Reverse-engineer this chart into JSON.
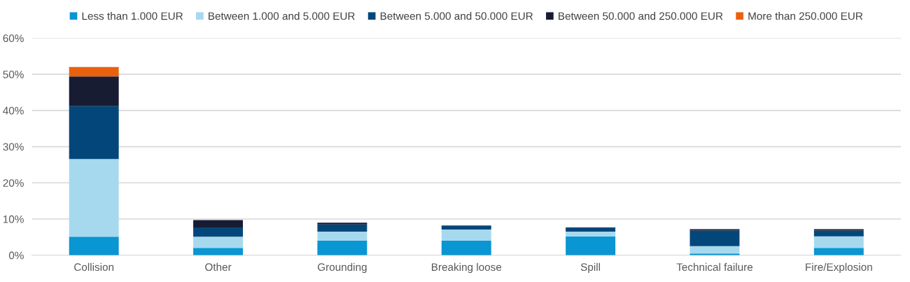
{
  "chart_data": {
    "type": "bar",
    "stacked": true,
    "categories": [
      "Collision",
      "Other",
      "Grounding",
      "Breaking loose",
      "Spill",
      "Technical failure",
      "Fire/Explosion"
    ],
    "series": [
      {
        "name": "Less than 1.000 EUR",
        "color": "#0a95d3",
        "values": [
          5.1,
          2.0,
          4.0,
          4.0,
          5.2,
          0.5,
          2.0
        ]
      },
      {
        "name": "Between 1.000 and 5.000 EUR",
        "color": "#a7d9ee",
        "values": [
          21.5,
          3.1,
          2.5,
          3.1,
          1.3,
          2.0,
          3.2
        ]
      },
      {
        "name": "Between 5.000 and 50.000 EUR",
        "color": "#03477a",
        "values": [
          14.6,
          2.6,
          2.0,
          1.1,
          1.2,
          4.3,
          1.6
        ]
      },
      {
        "name": "Between 50.000 and 250.000 EUR",
        "color": "#171c33",
        "values": [
          8.2,
          2.0,
          0.5,
          0,
          0,
          0.4,
          0.4
        ]
      },
      {
        "name": "More than 250.000 EUR",
        "color": "#e8610f",
        "values": [
          2.6,
          0,
          0,
          0,
          0,
          0,
          0
        ]
      }
    ],
    "ylim": [
      0,
      60
    ],
    "yticks": [
      {
        "value": 0,
        "label": "0%"
      },
      {
        "value": 10,
        "label": "10%"
      },
      {
        "value": 20,
        "label": "20%"
      },
      {
        "value": 30,
        "label": "30%"
      },
      {
        "value": 40,
        "label": "40%"
      },
      {
        "value": 50,
        "label": "50%"
      },
      {
        "value": 60,
        "label": "60%"
      }
    ],
    "grid": "y",
    "legend": "top"
  }
}
